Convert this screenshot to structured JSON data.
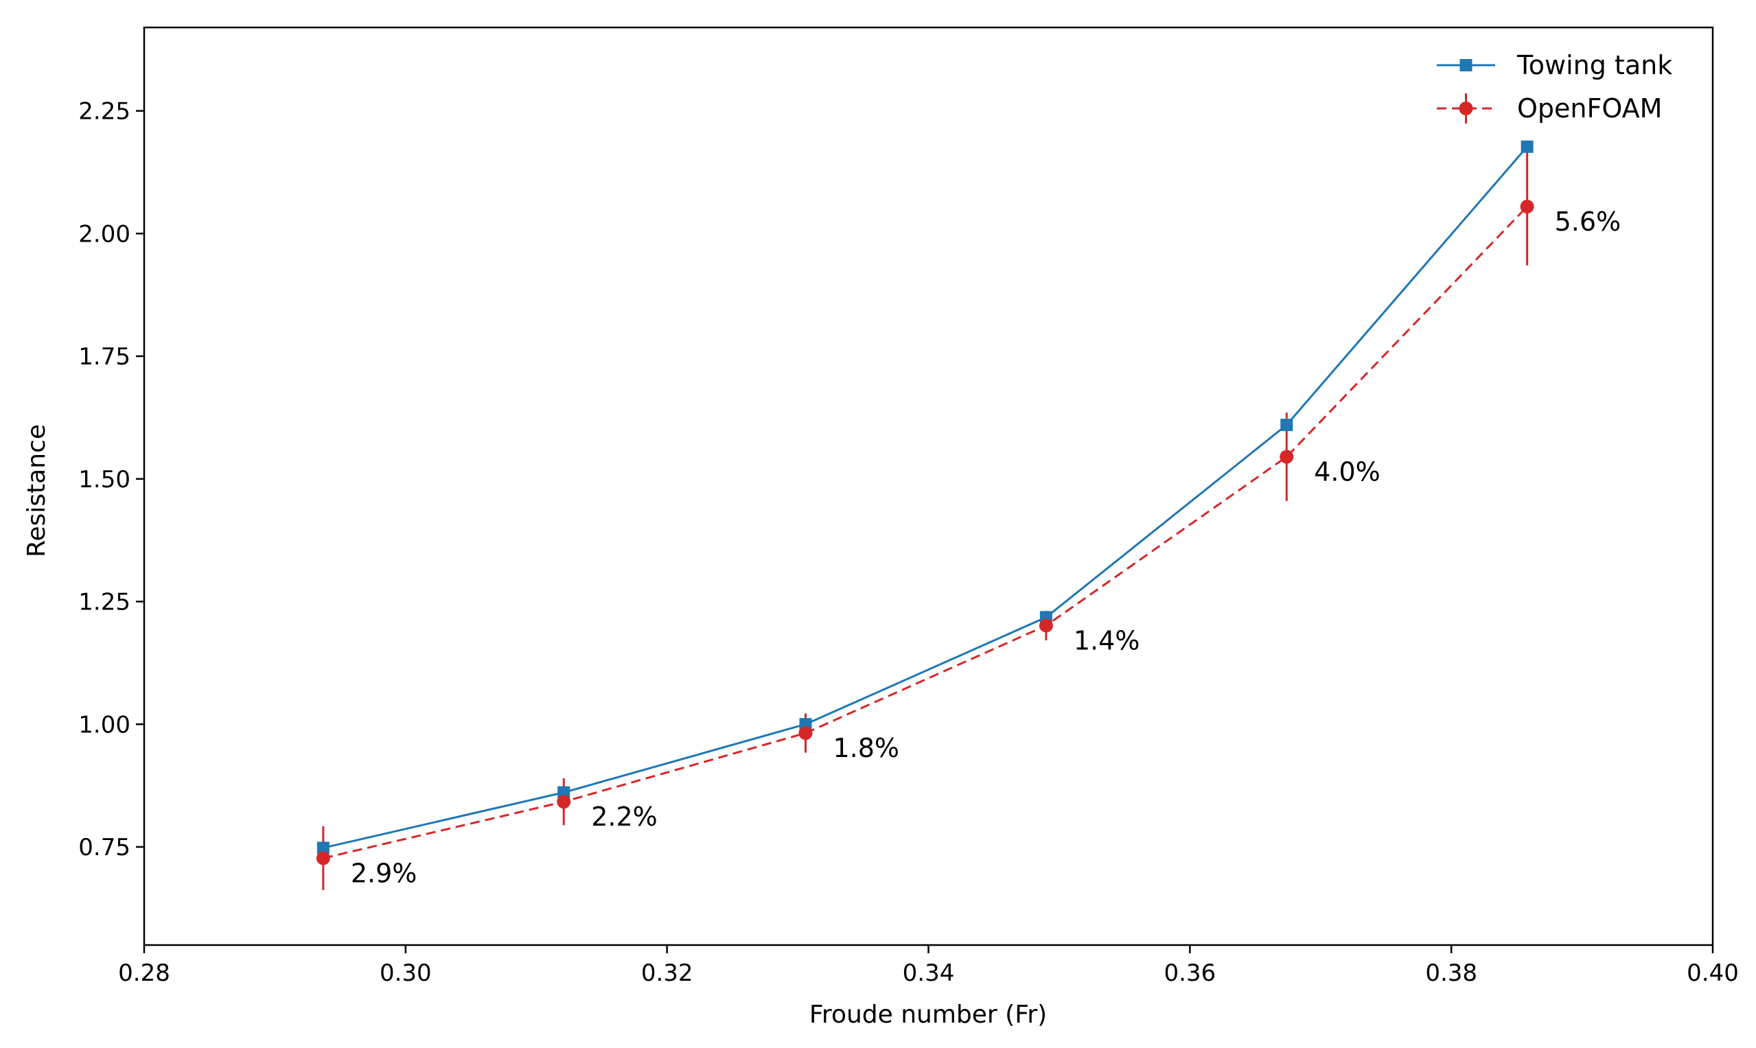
{
  "chart_data": {
    "type": "line",
    "title": "",
    "xlabel": "Froude number (Fr)",
    "ylabel": "Resistance",
    "xlim": [
      0.28,
      0.4
    ],
    "ylim": [
      0.55,
      2.42
    ],
    "xticks": [
      0.28,
      0.3,
      0.32,
      0.34,
      0.36,
      0.38,
      0.4
    ],
    "xtick_labels": [
      "0.28",
      "0.30",
      "0.32",
      "0.34",
      "0.36",
      "0.38",
      "0.40"
    ],
    "yticks": [
      0.75,
      1.0,
      1.25,
      1.5,
      1.75,
      2.0,
      2.25
    ],
    "ytick_labels": [
      "0.75",
      "1.00",
      "1.25",
      "1.50",
      "1.75",
      "2.00",
      "2.25"
    ],
    "grid": false,
    "legend_position": "top-right",
    "series": [
      {
        "name": "Towing tank",
        "color": "#1f77b4",
        "line_style": "solid",
        "marker": "square",
        "x": [
          0.2937,
          0.3121,
          0.3306,
          0.349,
          0.3674,
          0.3858
        ],
        "y": [
          0.748,
          0.861,
          1.0,
          1.218,
          1.61,
          2.177
        ]
      },
      {
        "name": "OpenFOAM",
        "color": "#d62728",
        "line_style": "dashed",
        "marker": "circle",
        "x": [
          0.2937,
          0.3121,
          0.3306,
          0.349,
          0.3674,
          0.3858
        ],
        "y": [
          0.727,
          0.842,
          0.982,
          1.201,
          1.545,
          2.055
        ],
        "error": [
          0.065,
          0.048,
          0.04,
          0.03,
          0.09,
          0.12
        ]
      }
    ],
    "annotations": [
      {
        "x": 0.2937,
        "y": 0.727,
        "text": "2.9%"
      },
      {
        "x": 0.3121,
        "y": 0.842,
        "text": "2.2%"
      },
      {
        "x": 0.3306,
        "y": 0.982,
        "text": "1.8%"
      },
      {
        "x": 0.349,
        "y": 1.201,
        "text": "1.4%"
      },
      {
        "x": 0.3674,
        "y": 1.545,
        "text": "4.0%"
      },
      {
        "x": 0.3858,
        "y": 2.055,
        "text": "5.6%"
      }
    ]
  }
}
